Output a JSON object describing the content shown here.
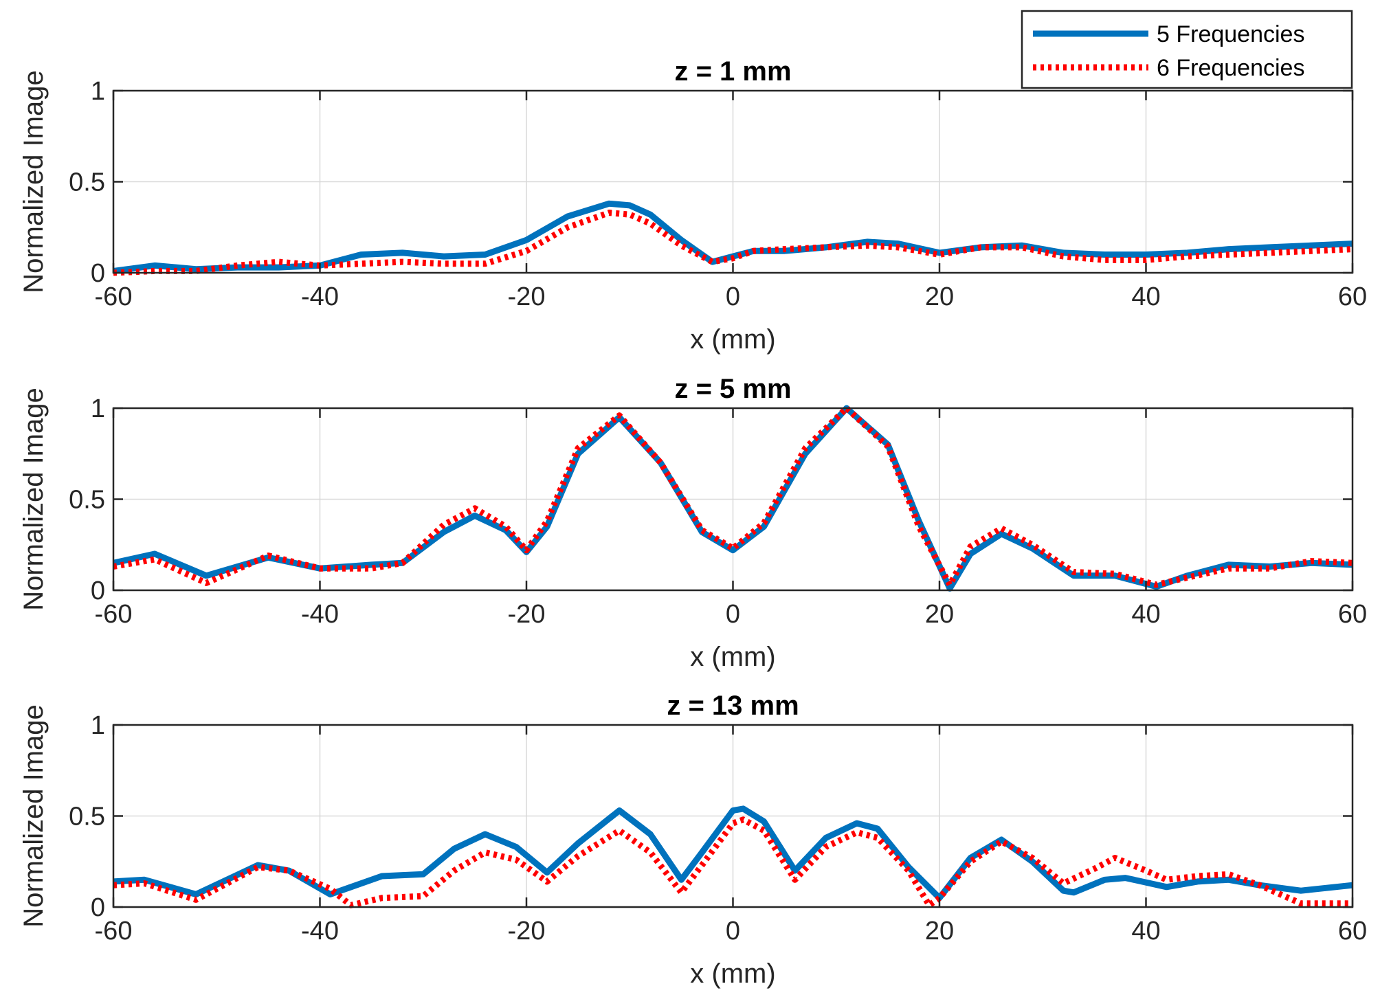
{
  "chart_data": [
    {
      "type": "line",
      "title": "z = 1 mm",
      "xlabel": "x (mm)",
      "ylabel": "Normalized Image",
      "xlim": [
        -60,
        60
      ],
      "ylim": [
        0,
        1
      ],
      "xticks": [
        "-60",
        "-40",
        "-20",
        "0",
        "20",
        "40",
        "60"
      ],
      "yticks": [
        "0",
        "0.5",
        "1"
      ],
      "grid": true,
      "series": [
        {
          "name": "5 Frequencies",
          "x": [
            -60,
            -56,
            -52,
            -48,
            -44,
            -40,
            -36,
            -32,
            -28,
            -24,
            -20,
            -16,
            -12,
            -10,
            -8,
            -5,
            -2,
            0,
            2,
            5,
            9,
            13,
            16,
            20,
            24,
            28,
            32,
            36,
            40,
            44,
            48,
            52,
            56,
            60
          ],
          "y": [
            0.01,
            0.04,
            0.02,
            0.03,
            0.03,
            0.04,
            0.1,
            0.11,
            0.09,
            0.1,
            0.18,
            0.31,
            0.38,
            0.37,
            0.32,
            0.18,
            0.06,
            0.09,
            0.12,
            0.12,
            0.14,
            0.17,
            0.16,
            0.11,
            0.14,
            0.15,
            0.11,
            0.1,
            0.1,
            0.11,
            0.13,
            0.14,
            0.15,
            0.16
          ]
        },
        {
          "name": "6 Frequencies",
          "x": [
            -60,
            -56,
            -52,
            -48,
            -44,
            -40,
            -36,
            -32,
            -28,
            -24,
            -20,
            -16,
            -12,
            -10,
            -8,
            -5,
            -2,
            0,
            2,
            5,
            9,
            13,
            16,
            20,
            24,
            28,
            32,
            36,
            40,
            44,
            48,
            52,
            56,
            60
          ],
          "y": [
            0.0,
            0.01,
            0.01,
            0.04,
            0.06,
            0.04,
            0.05,
            0.06,
            0.05,
            0.05,
            0.12,
            0.25,
            0.33,
            0.32,
            0.27,
            0.15,
            0.06,
            0.08,
            0.12,
            0.13,
            0.14,
            0.15,
            0.14,
            0.1,
            0.14,
            0.14,
            0.09,
            0.07,
            0.07,
            0.09,
            0.1,
            0.11,
            0.12,
            0.13
          ]
        }
      ]
    },
    {
      "type": "line",
      "title": "z = 5 mm",
      "xlabel": "x (mm)",
      "ylabel": "Normalized Image",
      "xlim": [
        -60,
        60
      ],
      "ylim": [
        0,
        1
      ],
      "xticks": [
        "-60",
        "-40",
        "-20",
        "0",
        "20",
        "40",
        "60"
      ],
      "yticks": [
        "0",
        "0.5",
        "1"
      ],
      "grid": true,
      "series": [
        {
          "name": "5 Frequencies",
          "x": [
            -60,
            -56,
            -51,
            -45,
            -40,
            -35,
            -32,
            -28,
            -25,
            -22,
            -20,
            -18,
            -15,
            -11,
            -7,
            -3,
            0,
            3,
            7,
            11,
            15,
            18,
            21,
            23,
            26,
            29,
            33,
            37,
            41,
            44,
            48,
            52,
            56,
            60
          ],
          "y": [
            0.15,
            0.2,
            0.08,
            0.18,
            0.12,
            0.14,
            0.15,
            0.32,
            0.41,
            0.33,
            0.21,
            0.35,
            0.75,
            0.95,
            0.7,
            0.32,
            0.22,
            0.35,
            0.75,
            1.0,
            0.8,
            0.38,
            0.01,
            0.2,
            0.31,
            0.23,
            0.08,
            0.08,
            0.02,
            0.08,
            0.14,
            0.13,
            0.15,
            0.14
          ]
        },
        {
          "name": "6 Frequencies",
          "x": [
            -60,
            -56,
            -51,
            -45,
            -40,
            -35,
            -32,
            -28,
            -25,
            -22,
            -20,
            -18,
            -15,
            -11,
            -7,
            -3,
            0,
            3,
            7,
            11,
            15,
            18,
            21,
            23,
            26,
            29,
            33,
            37,
            41,
            44,
            48,
            52,
            56,
            60
          ],
          "y": [
            0.13,
            0.17,
            0.04,
            0.19,
            0.12,
            0.12,
            0.15,
            0.36,
            0.45,
            0.35,
            0.22,
            0.38,
            0.78,
            0.96,
            0.7,
            0.33,
            0.23,
            0.37,
            0.78,
            1.0,
            0.79,
            0.35,
            0.03,
            0.24,
            0.34,
            0.25,
            0.1,
            0.09,
            0.03,
            0.07,
            0.12,
            0.12,
            0.16,
            0.15
          ]
        }
      ]
    },
    {
      "type": "line",
      "title": "z = 13 mm",
      "xlabel": "x (mm)",
      "ylabel": "Normalized Image",
      "xlim": [
        -60,
        60
      ],
      "ylim": [
        0,
        1
      ],
      "xticks": [
        "-60",
        "-40",
        "-20",
        "0",
        "20",
        "40",
        "60"
      ],
      "yticks": [
        "0",
        "0.5",
        "1"
      ],
      "grid": true,
      "series": [
        {
          "name": "5 Frequencies",
          "x": [
            -60,
            -57,
            -52,
            -46,
            -43,
            -39,
            -34,
            -30,
            -27,
            -24,
            -21,
            -18,
            -15,
            -11,
            -8,
            -5,
            -3,
            0,
            1,
            3,
            6,
            9,
            12,
            14,
            17,
            20,
            23,
            26,
            29,
            32,
            33,
            36,
            38,
            42,
            45,
            48,
            51,
            55,
            60
          ],
          "y": [
            0.14,
            0.15,
            0.07,
            0.23,
            0.2,
            0.07,
            0.17,
            0.18,
            0.32,
            0.4,
            0.33,
            0.19,
            0.35,
            0.53,
            0.4,
            0.15,
            0.3,
            0.53,
            0.54,
            0.47,
            0.2,
            0.38,
            0.46,
            0.43,
            0.22,
            0.05,
            0.27,
            0.37,
            0.25,
            0.09,
            0.08,
            0.15,
            0.16,
            0.11,
            0.14,
            0.15,
            0.12,
            0.09,
            0.12
          ]
        },
        {
          "name": "6 Frequencies",
          "x": [
            -60,
            -57,
            -52,
            -46,
            -43,
            -39,
            -37,
            -34,
            -30,
            -27,
            -24,
            -21,
            -18,
            -15,
            -11,
            -8,
            -5,
            -3,
            0,
            1,
            3,
            6,
            9,
            12,
            14,
            17,
            19,
            20,
            23,
            26,
            29,
            32,
            35,
            37,
            40,
            42,
            45,
            48,
            51,
            55,
            60
          ],
          "y": [
            0.12,
            0.13,
            0.04,
            0.22,
            0.2,
            0.1,
            0.01,
            0.05,
            0.06,
            0.2,
            0.3,
            0.26,
            0.14,
            0.28,
            0.42,
            0.3,
            0.08,
            0.23,
            0.46,
            0.48,
            0.42,
            0.15,
            0.33,
            0.41,
            0.38,
            0.2,
            0.01,
            0.05,
            0.25,
            0.36,
            0.27,
            0.13,
            0.21,
            0.27,
            0.2,
            0.15,
            0.17,
            0.18,
            0.12,
            0.02,
            0.02
          ]
        }
      ]
    }
  ],
  "legend": {
    "entries": [
      {
        "label": "5 Frequencies",
        "color": "#0072BD",
        "style": "solid"
      },
      {
        "label": "6 Frequencies",
        "color": "#FF0000",
        "style": "dotted"
      }
    ]
  }
}
